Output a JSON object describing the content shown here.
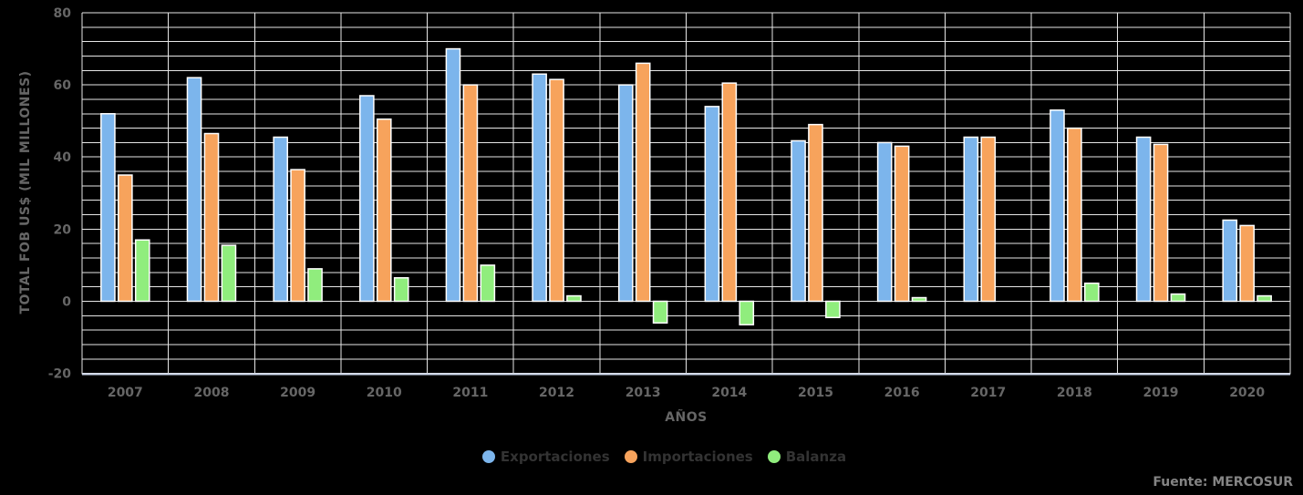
{
  "chart_data": {
    "type": "bar",
    "title": "",
    "xlabel": "AÑOS",
    "ylabel": "TOTAL FOB US$ (MIL MILLONES)",
    "categories": [
      "2007",
      "2008",
      "2009",
      "2010",
      "2011",
      "2012",
      "2013",
      "2014",
      "2015",
      "2016",
      "2017",
      "2018",
      "2019",
      "2020"
    ],
    "series": [
      {
        "name": "Exportaciones",
        "color": "#7cb5ec",
        "values": [
          52,
          62,
          45.5,
          57,
          70,
          63,
          60,
          54,
          44.5,
          44,
          45.5,
          53,
          45.5,
          22.5
        ]
      },
      {
        "name": "Importaciones",
        "color": "#f7a35c",
        "values": [
          35,
          46.5,
          36.5,
          50.5,
          60,
          61.5,
          66,
          60.5,
          49,
          43,
          45.5,
          48,
          43.5,
          21
        ]
      },
      {
        "name": "Balanza",
        "color": "#90ed7d",
        "values": [
          17,
          15.5,
          9,
          6.5,
          10,
          1.5,
          -6,
          -6.5,
          -4.5,
          1,
          0,
          5,
          2,
          1.5
        ]
      }
    ],
    "ylim": [
      -20,
      80
    ],
    "y_major_ticks": [
      80,
      60,
      40,
      20,
      0,
      -20
    ],
    "y_minor_step": 4,
    "grid": true,
    "legend_position": "bottom"
  },
  "source_note": "Fuente: MERCOSUR",
  "style": {
    "background": "#000000",
    "grid_color": "#e6e6e6",
    "axis_line_color": "#ccd6eb",
    "tick_label_color": "#666666",
    "title_color": "#666666",
    "legend_text_color": "#333333",
    "source_color": "#848484",
    "bar_border_color": "#ffffff"
  }
}
